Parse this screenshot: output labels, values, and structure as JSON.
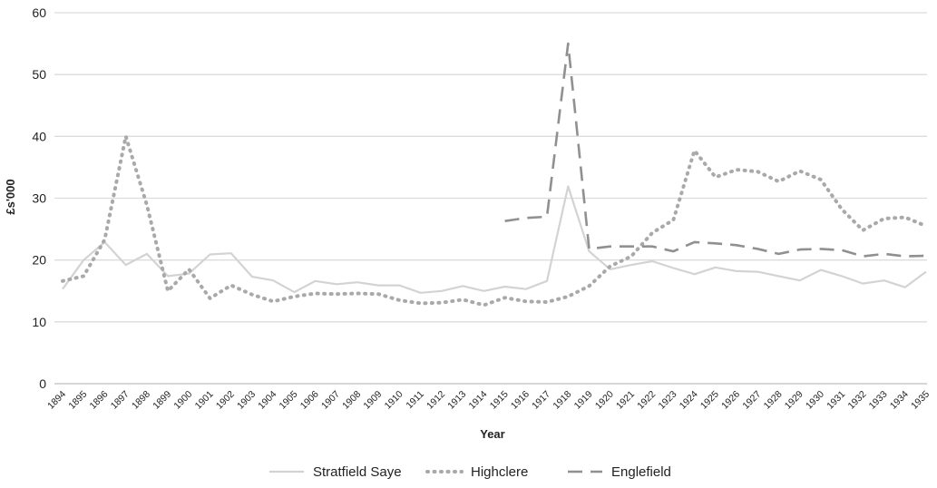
{
  "chart_data": {
    "type": "line",
    "title": "",
    "xlabel": "Year",
    "ylabel": "£s'000",
    "ylim": [
      0,
      60
    ],
    "yticks": [
      0,
      10,
      20,
      30,
      40,
      50,
      60
    ],
    "grid": "horizontal",
    "legend_position": "bottom",
    "categories": [
      "1894",
      "1895",
      "1896",
      "1897",
      "1898",
      "1899",
      "1900",
      "1901",
      "1902",
      "1903",
      "1904",
      "1905",
      "1906",
      "1907",
      "1908",
      "1909",
      "1910",
      "1911",
      "1912",
      "1913",
      "1914",
      "1915",
      "1916",
      "1917",
      "1918",
      "1919",
      "1920",
      "1921",
      "1922",
      "1923",
      "1924",
      "1925",
      "1926",
      "1927",
      "1928",
      "1929",
      "1930",
      "1931",
      "1932",
      "1933",
      "1934",
      "1935"
    ],
    "series": [
      {
        "name": "Stratfield Saye",
        "color": "#d3d3d3",
        "style": "solid",
        "values": [
          15.3,
          20.0,
          22.9,
          19.2,
          21.0,
          17.4,
          17.8,
          20.9,
          21.1,
          17.3,
          16.7,
          14.8,
          16.6,
          16.1,
          16.4,
          15.9,
          15.9,
          14.7,
          15.0,
          15.8,
          15.0,
          15.7,
          15.3,
          16.6,
          31.9,
          21.4,
          18.5,
          19.2,
          19.8,
          18.7,
          17.7,
          18.8,
          18.2,
          18.1,
          17.4,
          16.7,
          18.4,
          17.4,
          16.2,
          16.7,
          15.6,
          18.1
        ]
      },
      {
        "name": "Highclere",
        "color": "#a9a9a9",
        "style": "dotted",
        "values": [
          16.6,
          17.4,
          23.3,
          40.0,
          28.9,
          15.0,
          18.5,
          13.8,
          15.9,
          14.4,
          13.3,
          14.1,
          14.6,
          14.5,
          14.6,
          14.5,
          13.5,
          13.0,
          13.1,
          13.6,
          12.7,
          13.9,
          13.3,
          13.2,
          14.1,
          15.8,
          19.0,
          20.6,
          24.4,
          26.5,
          37.7,
          33.4,
          34.6,
          34.3,
          32.7,
          34.4,
          33.0,
          28.2,
          24.8,
          26.7,
          26.9,
          25.5
        ]
      },
      {
        "name": "Englefield",
        "color": "#909090",
        "style": "dashed",
        "values": [
          null,
          null,
          null,
          null,
          null,
          null,
          null,
          null,
          null,
          null,
          null,
          null,
          null,
          null,
          null,
          null,
          null,
          null,
          null,
          null,
          null,
          26.3,
          26.8,
          27.0,
          55.0,
          21.8,
          22.2,
          22.2,
          22.2,
          21.4,
          22.9,
          22.7,
          22.4,
          21.8,
          21.0,
          21.7,
          21.8,
          21.6,
          20.6,
          21.0,
          20.6,
          20.7
        ]
      }
    ]
  }
}
